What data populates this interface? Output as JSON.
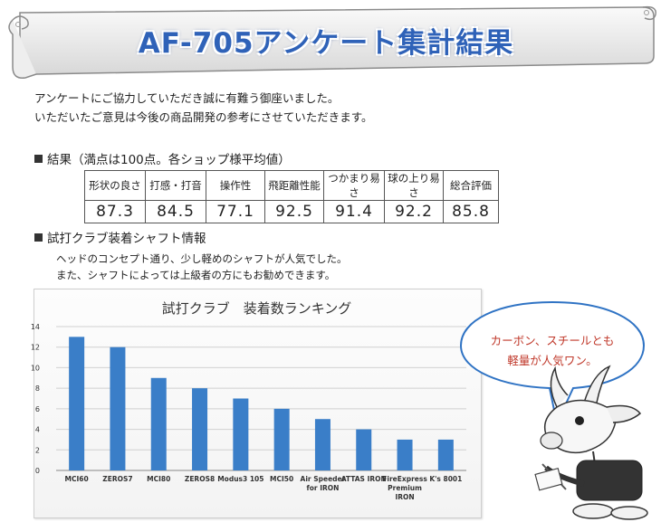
{
  "header": {
    "title": "AF-705アンケート集計結果"
  },
  "intro": {
    "line1": "アンケートにご協力していただき誠に有難う御座いました。",
    "line2": "いただいたご意見は今後の商品開発の参考にさせていただきます。"
  },
  "results": {
    "heading": "結果（満点は100点。各ショップ様平均値）",
    "columns": [
      "形状の良さ",
      "打感・打音",
      "操作性",
      "飛距離性能",
      "つかまり易さ",
      "球の上り易さ",
      "総合評価"
    ],
    "values": [
      "87.3",
      "84.5",
      "77.1",
      "92.5",
      "91.4",
      "92.2",
      "85.8"
    ]
  },
  "shaft": {
    "heading": "試打クラブ装着シャフト情報",
    "note1": "ヘッドのコンセプト通り、少し軽めのシャフトが人気でした。",
    "note2": "また、シャフトによっては上級者の方にもお勧めできます。"
  },
  "bubble": {
    "line1": "カーボン、スチールとも",
    "line2": "軽量が人気ワン。"
  },
  "chart_data": {
    "type": "bar",
    "title": "試打クラブ　装着数ランキング",
    "categories": [
      [
        "MCI60"
      ],
      [
        "ZEROS7"
      ],
      [
        "MCI80"
      ],
      [
        "ZEROS8"
      ],
      [
        "Modus3 105"
      ],
      [
        "MCI50"
      ],
      [
        "Air Speeder",
        "for IRON"
      ],
      [
        "ATTAS IRON"
      ],
      [
        "FireExpress",
        "Premium",
        "IRON"
      ],
      [
        "K's 8001"
      ]
    ],
    "values": [
      13,
      12,
      9,
      8,
      7,
      6,
      5,
      4,
      3,
      3
    ],
    "ylim": [
      0,
      14
    ],
    "yticks": [
      0,
      2,
      4,
      6,
      8,
      10,
      12,
      14
    ],
    "grid": true,
    "bar_color": "#3a7ec8"
  }
}
